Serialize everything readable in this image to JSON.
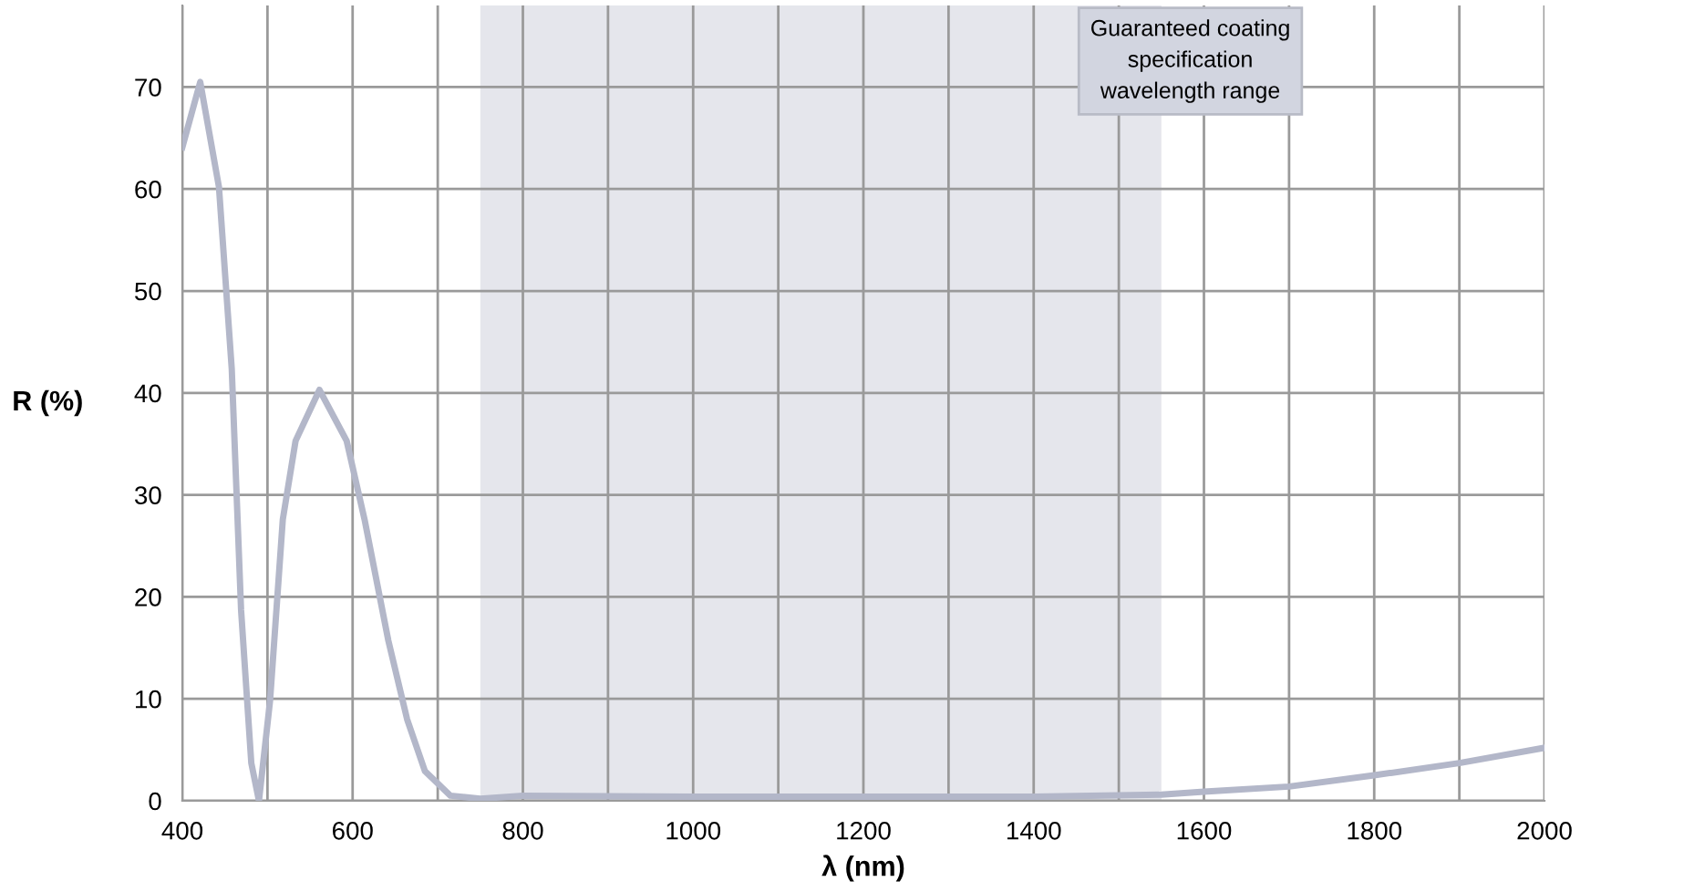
{
  "chart_data": {
    "type": "line",
    "xlabel": "λ (nm)",
    "ylabel": "R (%)",
    "x": [
      400,
      421,
      443,
      458,
      469,
      481,
      490,
      503,
      518,
      533,
      561,
      593,
      614,
      642,
      664,
      685,
      715,
      750,
      800,
      1000,
      1200,
      1400,
      1550,
      1600,
      1700,
      1800,
      1900,
      2000
    ],
    "series": [
      {
        "color": "#b3b7c9",
        "values": [
          64.1,
          70.5,
          60.2,
          42.4,
          18.7,
          3.7,
          0,
          9.8,
          27.6,
          35.3,
          40.3,
          35.3,
          27.6,
          15.7,
          8.0,
          2.9,
          0.5,
          0.2,
          0.5,
          0.4,
          0.4,
          0.4,
          0.6,
          0.9,
          1.4,
          2.5,
          3.7,
          5.2
        ]
      }
    ],
    "xlim": [
      400,
      2000
    ],
    "ylim": [
      0,
      78
    ],
    "xticks": [
      400,
      {
        "value": 500,
        "label": null
      },
      600,
      {
        "value": 700,
        "label": null
      },
      800,
      {
        "value": 900,
        "label": null
      },
      1000,
      {
        "value": 1100,
        "label": null
      },
      1200,
      {
        "value": 1300,
        "label": null
      },
      1400,
      {
        "value": 1500,
        "label": null
      },
      1600,
      {
        "value": 1700,
        "label": null
      },
      1800,
      {
        "value": 1900,
        "label": null
      },
      2000
    ],
    "yticks": [
      0,
      10,
      20,
      30,
      40,
      50,
      60,
      70
    ],
    "bands": [
      {
        "axis": "x",
        "from": 750,
        "to": 1550,
        "label": "Guaranteed coating\nspecification\nwavelength range",
        "color": "#e5e6ec"
      }
    ],
    "grid": true,
    "line_style": "solid",
    "marker": "none"
  }
}
